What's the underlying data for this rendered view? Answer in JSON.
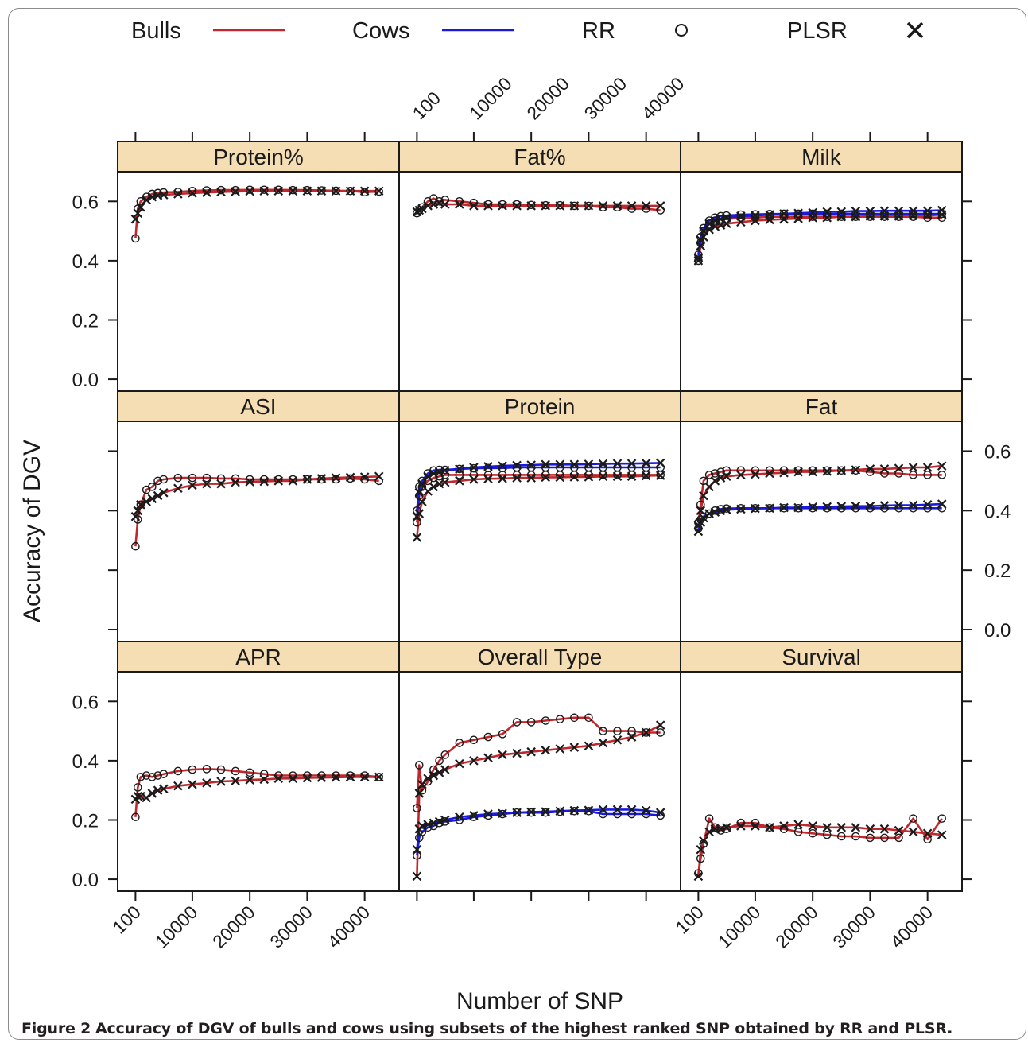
{
  "legend": [
    {
      "label": "Bulls",
      "kind": "line",
      "color": "#c0282d"
    },
    {
      "label": "Cows",
      "kind": "line",
      "color": "#1a1adf"
    },
    {
      "label": "RR",
      "kind": "marker",
      "glyph": "circle"
    },
    {
      "label": "PLSR",
      "kind": "marker",
      "glyph": "cross"
    }
  ],
  "caption": {
    "lead": "Figure 2",
    "text": "Accuracy of DGV of bulls and cows using subsets of the highest ranked SNP obtained by RR and PLSR."
  },
  "colors": {
    "strip": "#f5deb3",
    "bulls": "#c0282d",
    "cows": "#1a1adf",
    "marker": "#1a1a1a"
  },
  "chart_data": {
    "type": "line",
    "layout": "3x3 trellis panels",
    "xlabel": "Number of SNP",
    "ylabel": "Accuracy of DGV",
    "xticks": [
      "100",
      "10000",
      "20000",
      "30000",
      "40000"
    ],
    "xtick_values": [
      100,
      10000,
      20000,
      30000,
      40000
    ],
    "yticks": [
      "0.0",
      "0.2",
      "0.4",
      "0.6"
    ],
    "ytick_values": [
      0,
      0.2,
      0.4,
      0.6
    ],
    "xlim": [
      -3000,
      46000
    ],
    "ylim": [
      -0.04,
      0.7
    ],
    "x": [
      100,
      500,
      1000,
      2000,
      3000,
      4000,
      5000,
      7500,
      10000,
      12500,
      15000,
      17500,
      20000,
      22500,
      25000,
      27500,
      30000,
      32500,
      35000,
      37500,
      40000,
      42500
    ],
    "series_order": [
      "Bulls RR",
      "Bulls PLSR",
      "Cows RR",
      "Cows PLSR"
    ],
    "panels": [
      {
        "title": "Protein%",
        "series": [
          {
            "name": "Bulls RR",
            "values": [
              0.475,
              0.575,
              0.6,
              0.615,
              0.625,
              0.628,
              0.63,
              0.632,
              0.635,
              0.637,
              0.638,
              0.638,
              0.639,
              0.639,
              0.639,
              0.638,
              0.638,
              0.637,
              0.636,
              0.635,
              0.631,
              0.633
            ]
          },
          {
            "name": "Bulls PLSR",
            "values": [
              0.54,
              0.56,
              0.58,
              0.605,
              0.615,
              0.62,
              0.622,
              0.625,
              0.628,
              0.63,
              0.632,
              0.633,
              0.634,
              0.635,
              0.635,
              0.635,
              0.635,
              0.635,
              0.635,
              0.635,
              0.635,
              0.635
            ]
          }
        ]
      },
      {
        "title": "Fat%",
        "series": [
          {
            "name": "Bulls RR",
            "values": [
              0.56,
              0.57,
              0.58,
              0.6,
              0.61,
              0.6,
              0.605,
              0.6,
              0.595,
              0.59,
              0.59,
              0.59,
              0.588,
              0.587,
              0.587,
              0.585,
              0.585,
              0.58,
              0.58,
              0.575,
              0.575,
              0.57
            ]
          },
          {
            "name": "Bulls PLSR",
            "values": [
              0.565,
              0.57,
              0.575,
              0.585,
              0.59,
              0.595,
              0.59,
              0.59,
              0.585,
              0.585,
              0.585,
              0.585,
              0.585,
              0.585,
              0.585,
              0.585,
              0.585,
              0.585,
              0.585,
              0.585,
              0.585,
              0.585
            ]
          }
        ]
      },
      {
        "title": "Milk",
        "series": [
          {
            "name": "Bulls RR",
            "values": [
              0.4,
              0.46,
              0.5,
              0.525,
              0.535,
              0.54,
              0.54,
              0.545,
              0.545,
              0.548,
              0.548,
              0.548,
              0.548,
              0.548,
              0.548,
              0.548,
              0.548,
              0.548,
              0.548,
              0.548,
              0.545,
              0.545
            ]
          },
          {
            "name": "Bulls PLSR",
            "values": [
              0.4,
              0.45,
              0.48,
              0.505,
              0.515,
              0.52,
              0.525,
              0.53,
              0.535,
              0.538,
              0.54,
              0.542,
              0.545,
              0.545,
              0.548,
              0.548,
              0.55,
              0.55,
              0.55,
              0.552,
              0.552,
              0.555
            ]
          },
          {
            "name": "Cows RR",
            "values": [
              0.42,
              0.48,
              0.51,
              0.535,
              0.545,
              0.55,
              0.552,
              0.555,
              0.556,
              0.557,
              0.558,
              0.558,
              0.558,
              0.558,
              0.558,
              0.558,
              0.558,
              0.558,
              0.558,
              0.558,
              0.558,
              0.558
            ]
          },
          {
            "name": "Cows PLSR",
            "values": [
              0.41,
              0.47,
              0.5,
              0.525,
              0.535,
              0.54,
              0.545,
              0.55,
              0.552,
              0.555,
              0.558,
              0.56,
              0.562,
              0.565,
              0.565,
              0.567,
              0.567,
              0.568,
              0.568,
              0.568,
              0.568,
              0.57
            ]
          }
        ]
      },
      {
        "title": "ASI",
        "series": [
          {
            "name": "Bulls RR",
            "values": [
              0.28,
              0.37,
              0.42,
              0.47,
              0.48,
              0.5,
              0.505,
              0.51,
              0.51,
              0.51,
              0.508,
              0.508,
              0.505,
              0.505,
              0.505,
              0.505,
              0.505,
              0.505,
              0.505,
              0.508,
              0.505,
              0.5
            ]
          },
          {
            "name": "Bulls PLSR",
            "values": [
              0.38,
              0.4,
              0.42,
              0.43,
              0.44,
              0.45,
              0.46,
              0.475,
              0.485,
              0.49,
              0.49,
              0.495,
              0.497,
              0.498,
              0.5,
              0.5,
              0.505,
              0.508,
              0.51,
              0.512,
              0.513,
              0.515
            ]
          }
        ]
      },
      {
        "title": "Protein",
        "series": [
          {
            "name": "Bulls RR",
            "values": [
              0.36,
              0.45,
              0.48,
              0.5,
              0.51,
              0.515,
              0.52,
              0.52,
              0.52,
              0.52,
              0.52,
              0.52,
              0.52,
              0.52,
              0.52,
              0.52,
              0.52,
              0.52,
              0.52,
              0.52,
              0.52,
              0.52
            ]
          },
          {
            "name": "Bulls PLSR",
            "values": [
              0.31,
              0.39,
              0.43,
              0.465,
              0.48,
              0.49,
              0.495,
              0.5,
              0.505,
              0.507,
              0.508,
              0.51,
              0.51,
              0.512,
              0.512,
              0.513,
              0.513,
              0.515,
              0.515,
              0.515,
              0.517,
              0.518
            ]
          },
          {
            "name": "Cows RR",
            "values": [
              0.4,
              0.48,
              0.5,
              0.525,
              0.535,
              0.537,
              0.537,
              0.54,
              0.542,
              0.543,
              0.543,
              0.545,
              0.545,
              0.545,
              0.545,
              0.545,
              0.545,
              0.545,
              0.545,
              0.545,
              0.545,
              0.545
            ]
          },
          {
            "name": "Cows PLSR",
            "values": [
              0.38,
              0.46,
              0.49,
              0.515,
              0.525,
              0.53,
              0.535,
              0.54,
              0.545,
              0.548,
              0.55,
              0.552,
              0.553,
              0.555,
              0.555,
              0.555,
              0.556,
              0.557,
              0.558,
              0.558,
              0.559,
              0.56
            ]
          }
        ]
      },
      {
        "title": "Fat",
        "series": [
          {
            "name": "Bulls RR",
            "values": [
              0.36,
              0.42,
              0.5,
              0.52,
              0.525,
              0.53,
              0.535,
              0.535,
              0.535,
              0.535,
              0.535,
              0.535,
              0.535,
              0.535,
              0.535,
              0.535,
              0.53,
              0.525,
              0.525,
              0.52,
              0.52,
              0.52
            ]
          },
          {
            "name": "Bulls PLSR",
            "values": [
              0.35,
              0.4,
              0.45,
              0.48,
              0.5,
              0.51,
              0.515,
              0.52,
              0.522,
              0.525,
              0.527,
              0.53,
              0.53,
              0.532,
              0.535,
              0.537,
              0.54,
              0.54,
              0.542,
              0.545,
              0.545,
              0.55
            ]
          },
          {
            "name": "Cows RR",
            "values": [
              0.34,
              0.37,
              0.38,
              0.39,
              0.4,
              0.405,
              0.407,
              0.408,
              0.408,
              0.408,
              0.408,
              0.408,
              0.408,
              0.408,
              0.408,
              0.408,
              0.408,
              0.408,
              0.408,
              0.408,
              0.408,
              0.408
            ]
          },
          {
            "name": "Cows PLSR",
            "values": [
              0.33,
              0.36,
              0.375,
              0.39,
              0.395,
              0.4,
              0.403,
              0.405,
              0.407,
              0.408,
              0.41,
              0.41,
              0.412,
              0.413,
              0.414,
              0.415,
              0.415,
              0.417,
              0.418,
              0.418,
              0.42,
              0.422
            ]
          }
        ]
      },
      {
        "title": "APR",
        "series": [
          {
            "name": "Bulls RR",
            "values": [
              0.21,
              0.31,
              0.345,
              0.35,
              0.345,
              0.35,
              0.355,
              0.365,
              0.37,
              0.372,
              0.37,
              0.365,
              0.36,
              0.355,
              0.35,
              0.35,
              0.35,
              0.35,
              0.35,
              0.35,
              0.35,
              0.345
            ]
          },
          {
            "name": "Bulls PLSR",
            "values": [
              0.27,
              0.28,
              0.28,
              0.275,
              0.29,
              0.3,
              0.305,
              0.315,
              0.32,
              0.325,
              0.33,
              0.332,
              0.335,
              0.337,
              0.34,
              0.34,
              0.342,
              0.343,
              0.344,
              0.345,
              0.345,
              0.345
            ]
          }
        ]
      },
      {
        "title": "Overall Type",
        "series": [
          {
            "name": "Bulls RR",
            "values": [
              0.24,
              0.385,
              0.3,
              0.33,
              0.37,
              0.4,
              0.42,
              0.46,
              0.47,
              0.48,
              0.49,
              0.53,
              0.53,
              0.535,
              0.54,
              0.545,
              0.545,
              0.5,
              0.5,
              0.5,
              0.495,
              0.495
            ]
          },
          {
            "name": "Bulls PLSR",
            "values": [
              0.01,
              0.29,
              0.32,
              0.34,
              0.35,
              0.36,
              0.37,
              0.39,
              0.4,
              0.41,
              0.42,
              0.425,
              0.43,
              0.435,
              0.44,
              0.445,
              0.45,
              0.46,
              0.47,
              0.48,
              0.495,
              0.52
            ]
          },
          {
            "name": "Cows RR",
            "values": [
              0.08,
              0.14,
              0.16,
              0.175,
              0.18,
              0.19,
              0.195,
              0.2,
              0.21,
              0.215,
              0.22,
              0.225,
              0.225,
              0.225,
              0.228,
              0.23,
              0.23,
              0.22,
              0.22,
              0.22,
              0.22,
              0.215
            ]
          },
          {
            "name": "Cows PLSR",
            "values": [
              0.1,
              0.17,
              0.18,
              0.185,
              0.19,
              0.195,
              0.2,
              0.21,
              0.215,
              0.22,
              0.222,
              0.225,
              0.227,
              0.228,
              0.23,
              0.232,
              0.233,
              0.235,
              0.235,
              0.235,
              0.232,
              0.225
            ]
          }
        ]
      },
      {
        "title": "Survival",
        "series": [
          {
            "name": "Bulls RR",
            "values": [
              0.02,
              0.07,
              0.12,
              0.205,
              0.175,
              0.165,
              0.17,
              0.19,
              0.19,
              0.175,
              0.17,
              0.16,
              0.155,
              0.15,
              0.145,
              0.145,
              0.14,
              0.14,
              0.14,
              0.205,
              0.135,
              0.205
            ]
          },
          {
            "name": "Bulls PLSR",
            "values": [
              0.01,
              0.1,
              0.13,
              0.16,
              0.17,
              0.17,
              0.175,
              0.18,
              0.18,
              0.175,
              0.18,
              0.185,
              0.18,
              0.175,
              0.175,
              0.175,
              0.17,
              0.17,
              0.165,
              0.16,
              0.155,
              0.15
            ]
          }
        ]
      }
    ]
  }
}
